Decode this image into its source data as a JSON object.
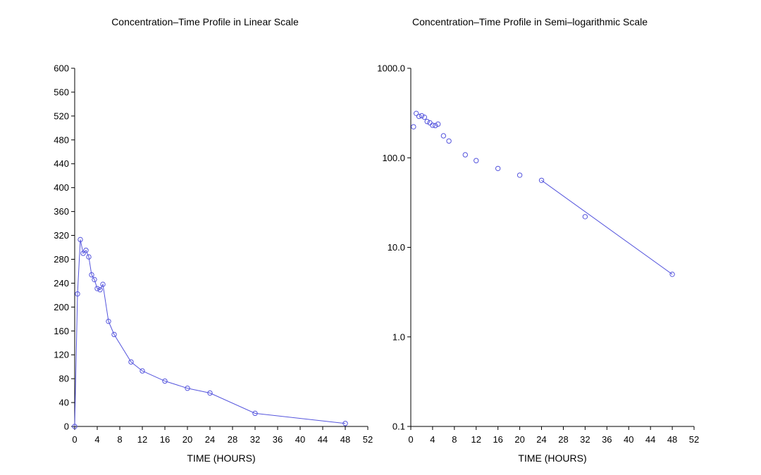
{
  "chart_data": [
    {
      "type": "line",
      "title": "Concentration–Time Profile in Linear Scale",
      "xlabel": "TIME  (HOURS)",
      "ylabel": "",
      "xlim": [
        0,
        52
      ],
      "ylim": [
        0,
        600
      ],
      "yscale": "linear",
      "x_ticks": [
        0,
        4,
        8,
        12,
        16,
        20,
        24,
        28,
        32,
        36,
        40,
        44,
        48,
        52
      ],
      "y_ticks": [
        0,
        40,
        80,
        120,
        160,
        200,
        240,
        280,
        320,
        360,
        400,
        440,
        480,
        520,
        560,
        600
      ],
      "y_tick_labels": [
        "0",
        "40",
        "80",
        "120",
        "160",
        "200",
        "240",
        "280",
        "320",
        "360",
        "400",
        "440",
        "480",
        "520",
        "560",
        "600"
      ],
      "grid": false,
      "color": "#5555dd",
      "marker": "open-circle",
      "series": [
        {
          "connected": true,
          "x": [
            0,
            0.5,
            1,
            1.5,
            2,
            2.5,
            3,
            3.5,
            4,
            4.5,
            5,
            6,
            7,
            10,
            12,
            16,
            20,
            24,
            32,
            48
          ],
          "y": [
            0,
            222,
            313,
            290,
            295,
            284,
            254,
            246,
            231,
            229,
            238,
            176,
            154,
            108,
            93,
            76,
            64,
            56,
            22,
            5
          ]
        }
      ]
    },
    {
      "type": "scatter",
      "title": "Concentration–Time Profile in Semi–logarithmic Scale",
      "xlabel": "TIME  (HOURS)",
      "ylabel": "",
      "xlim": [
        0,
        52
      ],
      "ylim": [
        0.1,
        1000
      ],
      "yscale": "log",
      "x_ticks": [
        0,
        4,
        8,
        12,
        16,
        20,
        24,
        28,
        32,
        36,
        40,
        44,
        48,
        52
      ],
      "y_ticks": [
        0.1,
        1,
        10,
        100,
        1000
      ],
      "y_tick_labels": [
        "0.1",
        "1.0",
        "10.0",
        "100.0",
        "1000.0"
      ],
      "grid": false,
      "color": "#5555dd",
      "marker": "open-circle",
      "series": [
        {
          "connected": false,
          "x": [
            0.5,
            1,
            1.5,
            2,
            2.5,
            3,
            3.5,
            4,
            4.5,
            5,
            6,
            7,
            10,
            12,
            16,
            20,
            24,
            32,
            48
          ],
          "y": [
            222,
            313,
            290,
            295,
            284,
            254,
            246,
            231,
            229,
            238,
            176,
            154,
            108,
            93,
            76,
            64,
            56,
            22,
            5
          ]
        }
      ],
      "fit_line": {
        "x": [
          24,
          48
        ],
        "y": [
          56,
          5
        ]
      }
    }
  ]
}
